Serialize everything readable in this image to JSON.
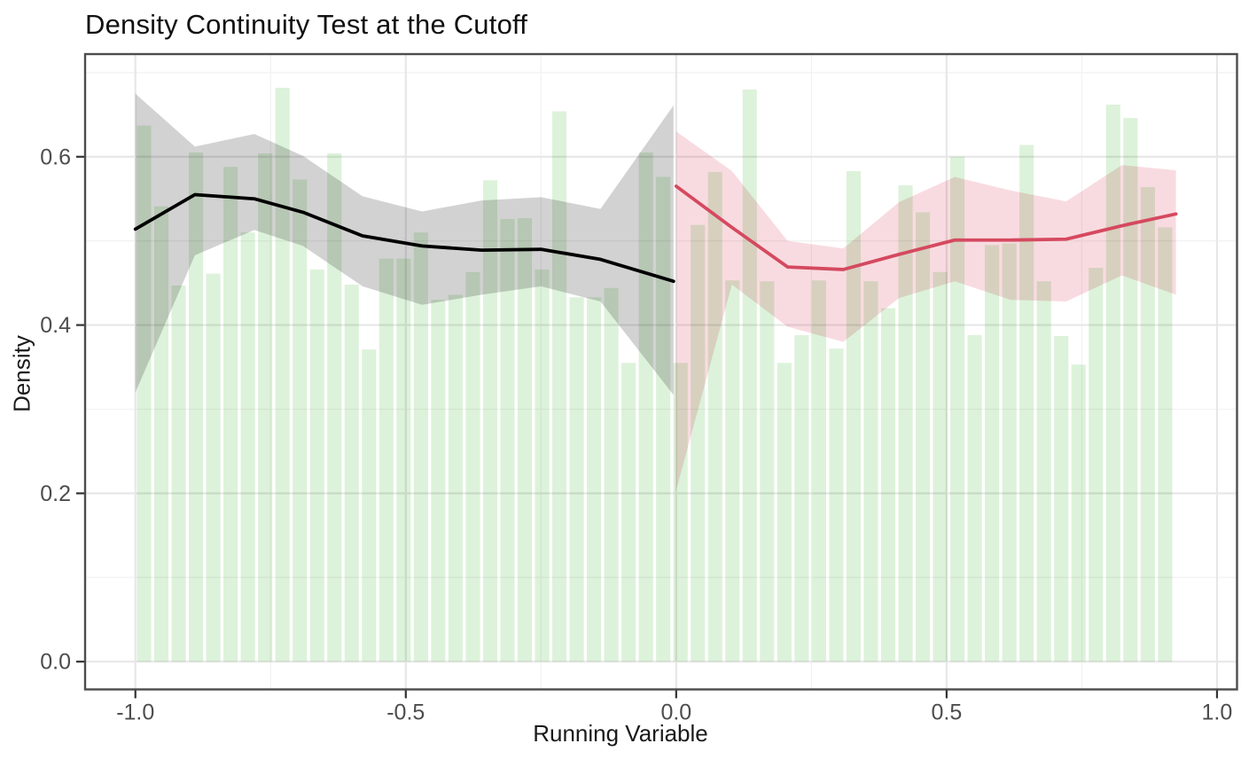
{
  "title": "Density Continuity Test at the Cutoff",
  "chart_data": {
    "type": "bar",
    "subtype": "histogram-with-local-polynomial-fits",
    "title": "Density Continuity Test at the Cutoff",
    "xlabel": "Running Variable",
    "ylabel": "Density",
    "cutoff": 0.0,
    "xlim": [
      -1.093,
      1.037
    ],
    "ylim": [
      -0.033,
      0.722
    ],
    "grid": "on",
    "x_ticks": [
      {
        "v": -1.0,
        "label": "-1.0"
      },
      {
        "v": -0.5,
        "label": "-0.5"
      },
      {
        "v": 0.0,
        "label": "0.0"
      },
      {
        "v": 0.5,
        "label": "0.5"
      },
      {
        "v": 1.0,
        "label": "1.0"
      }
    ],
    "x_minor_ticks": [
      -0.75,
      -0.25,
      0.25,
      0.75
    ],
    "y_ticks": [
      {
        "v": 0.0,
        "label": "0.0"
      },
      {
        "v": 0.2,
        "label": "0.2"
      },
      {
        "v": 0.4,
        "label": "0.4"
      },
      {
        "v": 0.6,
        "label": "0.6"
      }
    ],
    "y_minor_ticks": [
      0.1,
      0.3,
      0.5,
      0.7
    ],
    "histogram": {
      "bin_start": -1.0,
      "bin_width": 0.032,
      "heights": [
        0.637,
        0.541,
        0.447,
        0.605,
        0.461,
        0.588,
        0.51,
        0.604,
        0.682,
        0.573,
        0.466,
        0.604,
        0.448,
        0.371,
        0.479,
        0.479,
        0.51,
        0.43,
        0.436,
        0.463,
        0.572,
        0.526,
        0.527,
        0.466,
        0.654,
        0.433,
        0.433,
        0.444,
        0.355,
        0.605,
        0.576,
        0.355,
        0.519,
        0.582,
        0.453,
        0.68,
        0.452,
        0.355,
        0.388,
        0.453,
        0.372,
        0.583,
        0.452,
        0.42,
        0.566,
        0.534,
        0.463,
        0.6,
        0.388,
        0.495,
        0.497,
        0.614,
        0.452,
        0.387,
        0.353,
        0.468,
        0.662,
        0.646,
        0.564,
        0.516
      ]
    },
    "left_fit": {
      "name": "fit-below-cutoff",
      "x": [
        -1.0,
        -0.89,
        -0.78,
        -0.69,
        -0.58,
        -0.47,
        -0.36,
        -0.25,
        -0.14,
        -0.005
      ],
      "line": [
        0.514,
        0.555,
        0.55,
        0.534,
        0.506,
        0.494,
        0.489,
        0.49,
        0.478,
        0.452
      ],
      "lo": [
        0.32,
        0.483,
        0.513,
        0.494,
        0.446,
        0.424,
        0.436,
        0.446,
        0.428,
        0.317
      ],
      "hi": [
        0.675,
        0.612,
        0.627,
        0.601,
        0.553,
        0.535,
        0.548,
        0.552,
        0.538,
        0.661
      ]
    },
    "right_fit": {
      "name": "fit-above-cutoff",
      "x": [
        0.0,
        0.103,
        0.206,
        0.309,
        0.412,
        0.515,
        0.618,
        0.721,
        0.824,
        0.924
      ],
      "line": [
        0.565,
        0.516,
        0.469,
        0.466,
        0.484,
        0.501,
        0.501,
        0.502,
        0.518,
        0.532
      ],
      "lo": [
        0.204,
        0.448,
        0.398,
        0.38,
        0.432,
        0.452,
        0.43,
        0.428,
        0.459,
        0.436
      ],
      "hi": [
        0.63,
        0.583,
        0.5,
        0.491,
        0.546,
        0.576,
        0.56,
        0.547,
        0.59,
        0.584
      ]
    },
    "colors": {
      "bar_fill": "#ddf2da",
      "left_band": "#d2d2d2",
      "left_line": "#000000",
      "right_band": "#f8dbe0",
      "right_line": "#d5495f",
      "grid_major": "#e7e7e7",
      "grid_minor": "#f2f2f2",
      "panel_border": "#4d4d4d",
      "tick_mark": "#333333",
      "tick_label": "#4d4d4d"
    }
  }
}
